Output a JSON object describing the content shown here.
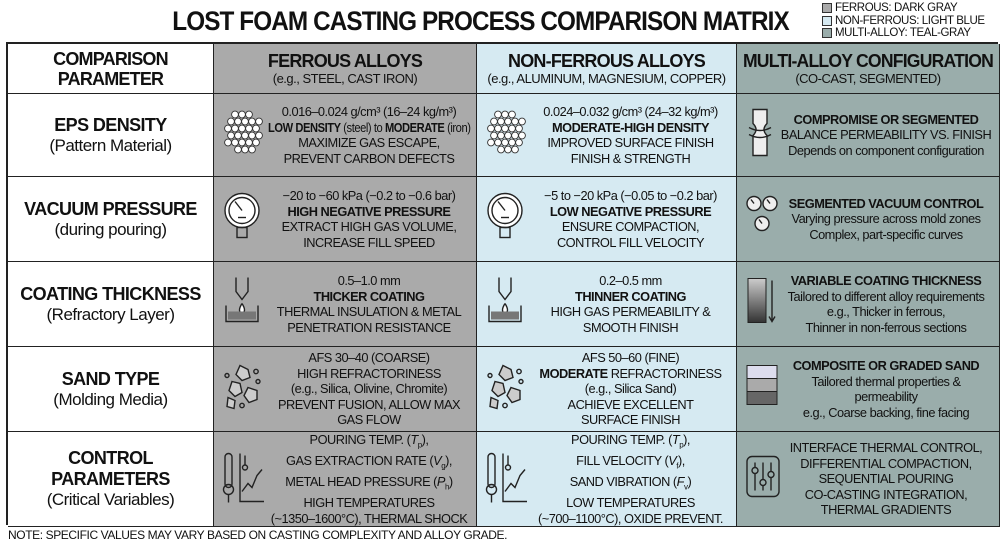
{
  "title": "LOST FOAM CASTING PROCESS COMPARISON MATRIX",
  "legend": [
    {
      "label": "FERROUS: DARK GRAY",
      "color": "#aaaaaa"
    },
    {
      "label": "NON-FERROUS: LIGHT BLUE",
      "color": "#d6eaf2"
    },
    {
      "label": "MULTI-ALLOY: TEAL-GRAY",
      "color": "#9aadab"
    }
  ],
  "header": [
    {
      "title": "COMPARISON PARAMETER",
      "sub": ""
    },
    {
      "title": "FERROUS ALLOYS",
      "sub": "(e.g., STEEL, CAST IRON)"
    },
    {
      "title": "NON-FERROUS ALLOYS",
      "sub": "(e.g., ALUMINUM, MAGNESIUM, COPPER)"
    },
    {
      "title": "MULTI-ALLOY CONFIGURATION",
      "sub": "(CO-CAST, SEGMENTED)"
    }
  ],
  "rows": [
    {
      "param": "EPS DENSITY",
      "sub": "(Pattern Material)",
      "icons": [
        "foam-beads-icon",
        "foam-beads-icon",
        "segmented-joint-icon"
      ],
      "cells": [
        [
          [
            {
              "t": "0.016–0.024 g/cm³ (16–24 kg/m³)"
            }
          ],
          [
            {
              "t": "LOW DENSITY",
              "b": true
            },
            {
              "t": " (steel) to "
            },
            {
              "t": "MODERATE",
              "b": true
            },
            {
              "t": " (iron)"
            }
          ],
          [
            {
              "t": "MAXIMIZE GAS ESCAPE,"
            }
          ],
          [
            {
              "t": "PREVENT CARBON DEFECTS"
            }
          ]
        ],
        [
          [
            {
              "t": "0.024–0.032 g/cm³ (24–32 kg/m³)"
            }
          ],
          [
            {
              "t": "MODERATE-HIGH DENSITY",
              "b": true
            }
          ],
          [
            {
              "t": "IMPROVED SURFACE FINISH"
            }
          ],
          [
            {
              "t": "FINISH & STRENGTH"
            }
          ]
        ],
        [
          [
            {
              "t": "COMPROMISE OR SEGMENTED",
              "b": true
            }
          ],
          [
            {
              "t": "BALANCE PERMEABILITY VS. FINISH"
            }
          ],
          [
            {
              "t": "Depends on component configuration"
            }
          ]
        ]
      ]
    },
    {
      "param": "VACUUM PRESSURE",
      "sub": "(during pouring)",
      "icons": [
        "pressure-gauge-icon",
        "pressure-gauge-icon",
        "multiple-gauges-icon"
      ],
      "cells": [
        [
          [
            {
              "t": "−20 to −60 kPa (−0.2 to −0.6 bar)"
            }
          ],
          [
            {
              "t": "HIGH NEGATIVE PRESSURE",
              "b": true
            }
          ],
          [
            {
              "t": "EXTRACT HIGH GAS VOLUME,"
            }
          ],
          [
            {
              "t": "INCREASE FILL SPEED"
            }
          ]
        ],
        [
          [
            {
              "t": "−5 to −20 kPa (−0.05 to −0.2 bar)"
            }
          ],
          [
            {
              "t": "LOW NEGATIVE PRESSURE",
              "b": true
            }
          ],
          [
            {
              "t": "ENSURE COMPACTION,"
            }
          ],
          [
            {
              "t": "CONTROL FILL VELOCITY"
            }
          ]
        ],
        [
          [
            {
              "t": "SEGMENTED VACUUM CONTROL",
              "b": true
            }
          ],
          [
            {
              "t": "Varying pressure across mold zones"
            }
          ],
          [
            {
              "t": "Complex, part-specific curves"
            }
          ]
        ]
      ]
    },
    {
      "param": "COATING THICKNESS",
      "sub": "(Refractory Layer)",
      "icons": [
        "coating-dip-icon",
        "coating-dip-icon",
        "gradient-bar-icon"
      ],
      "cells": [
        [
          [
            {
              "t": "0.5–1.0 mm"
            }
          ],
          [
            {
              "t": "THICKER COATING",
              "b": true
            }
          ],
          [
            {
              "t": "THERMAL INSULATION & METAL"
            }
          ],
          [
            {
              "t": "PENETRATION RESISTANCE"
            }
          ]
        ],
        [
          [
            {
              "t": "0.2–0.5 mm"
            }
          ],
          [
            {
              "t": "THINNER COATING",
              "b": true
            }
          ],
          [
            {
              "t": "HIGH GAS PERMEABILITY &"
            }
          ],
          [
            {
              "t": "SMOOTH FINISH"
            }
          ]
        ],
        [
          [
            {
              "t": "VARIABLE COATING THICKNESS",
              "b": true
            }
          ],
          [
            {
              "t": "Tailored to different alloy requirements"
            }
          ],
          [
            {
              "t": "e.g., Thicker in ferrous,"
            }
          ],
          [
            {
              "t": "Thinner in non-ferrous sections"
            }
          ]
        ]
      ]
    },
    {
      "param": "SAND TYPE",
      "sub": "(Molding Media)",
      "icons": [
        "sand-grains-icon",
        "sand-grains-icon",
        "layered-sand-icon"
      ],
      "cells": [
        [
          [
            {
              "t": "AFS 30–40 (COARSE)"
            }
          ],
          [
            {
              "t": "HIGH REFRACTORINESS"
            }
          ],
          [
            {
              "t": "(e.g., Silica, Olivine, Chromite)"
            }
          ],
          [
            {
              "t": "PREVENT FUSION, ALLOW MAX"
            }
          ],
          [
            {
              "t": "GAS FLOW"
            }
          ]
        ],
        [
          [
            {
              "t": "AFS 50–60 (FINE)"
            }
          ],
          [
            {
              "t": "MODERATE",
              "b": true
            },
            {
              "t": " REFRACTORINESS"
            }
          ],
          [
            {
              "t": "(e.g., Silica Sand)"
            }
          ],
          [
            {
              "t": "ACHIEVE EXCELLENT"
            }
          ],
          [
            {
              "t": "SURFACE FINISH"
            }
          ]
        ],
        [
          [
            {
              "t": "COMPOSITE OR GRADED SAND",
              "b": true
            }
          ],
          [
            {
              "t": "Tailored thermal properties &"
            }
          ],
          [
            {
              "t": "permeability"
            }
          ],
          [
            {
              "t": "e.g., Coarse backing, fine facing"
            }
          ]
        ]
      ]
    },
    {
      "param": "CONTROL PARAMETERS",
      "sub": "(Critical Variables)",
      "icons": [
        "thermometer-chart-icon",
        "thermometer-chart-icon",
        "sliders-icon"
      ],
      "cells": [
        [
          [
            {
              "t": "POURING TEMP. ("
            },
            {
              "t": "T",
              "i": true
            },
            {
              "t": "p",
              "sub": true
            },
            {
              "t": "),"
            }
          ],
          [
            {
              "t": "GAS EXTRACTION RATE ("
            },
            {
              "t": "V",
              "i": true
            },
            {
              "t": "g",
              "sub": true
            },
            {
              "t": "),"
            }
          ],
          [
            {
              "t": "METAL HEAD PRESSURE ("
            },
            {
              "t": "P",
              "i": true
            },
            {
              "t": "h",
              "sub": true
            },
            {
              "t": ")"
            }
          ],
          [
            {
              "t": "HIGH TEMPERATURES"
            }
          ],
          [
            {
              "t": "(~1350–1600°C), THERMAL SHOCK"
            }
          ]
        ],
        [
          [
            {
              "t": "POURING TEMP. ("
            },
            {
              "t": "T",
              "i": true
            },
            {
              "t": "p",
              "sub": true
            },
            {
              "t": "),"
            }
          ],
          [
            {
              "t": "FILL VELOCITY ("
            },
            {
              "t": "V",
              "i": true
            },
            {
              "t": "f",
              "sub": true
            },
            {
              "t": "),"
            }
          ],
          [
            {
              "t": "SAND VIBRATION ("
            },
            {
              "t": "F",
              "i": true
            },
            {
              "t": "v",
              "sub": true
            },
            {
              "t": ")"
            }
          ],
          [
            {
              "t": "LOW TEMPERATURES"
            }
          ],
          [
            {
              "t": "(~700–1100°C), OXIDE PREVENT."
            }
          ]
        ],
        [
          [
            {
              "t": "INTERFACE THERMAL CONTROL,"
            }
          ],
          [
            {
              "t": "DIFFERENTIAL COMPACTION,"
            }
          ],
          [
            {
              "t": "SEQUENTIAL POURING"
            }
          ],
          [
            {
              "t": "CO-CASTING INTEGRATION,"
            }
          ],
          [
            {
              "t": "THERMAL GRADIENTS"
            }
          ]
        ]
      ]
    }
  ],
  "note": "NOTE: SPECIFIC VALUES MAY VARY BASED ON CASTING COMPLEXITY AND ALLOY GRADE."
}
